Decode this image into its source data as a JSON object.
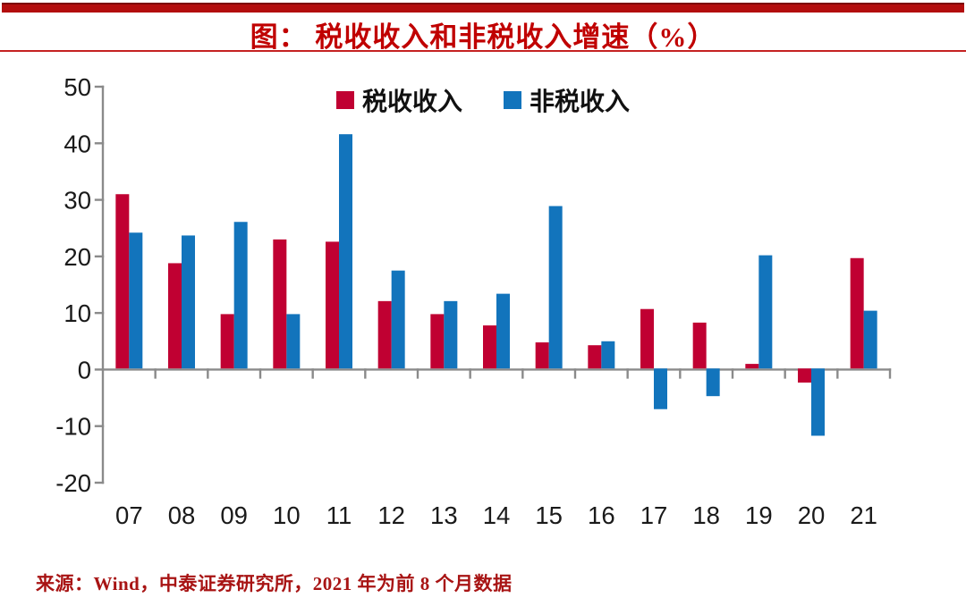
{
  "title": "图：  税收收入和非税收入增速（%）",
  "source_note": "来源：Wind，中泰证券研究所，2021 年为前 8 个月数据",
  "legend": {
    "items": [
      {
        "label": "税收收入",
        "color": "#c00032"
      },
      {
        "label": "非税收入",
        "color": "#1274bc"
      }
    ]
  },
  "colors": {
    "accent_red": "#c00000",
    "bar_red": "#c00032",
    "bar_blue": "#1274bc",
    "axis_gray": "#8a8a8a",
    "label_black": "#1a1a1a"
  },
  "chart_data": {
    "type": "bar",
    "title": "税收收入和非税收入增速（%）",
    "categories": [
      "07",
      "08",
      "09",
      "10",
      "11",
      "12",
      "13",
      "14",
      "15",
      "16",
      "17",
      "18",
      "19",
      "20",
      "21"
    ],
    "series": [
      {
        "name": "税收收入",
        "color": "#c00032",
        "values": [
          31.0,
          18.8,
          9.8,
          23.0,
          22.6,
          12.1,
          9.8,
          7.8,
          4.8,
          4.3,
          10.7,
          8.3,
          1.0,
          -2.3,
          19.7
        ]
      },
      {
        "name": "非税收入",
        "color": "#1274bc",
        "values": [
          24.2,
          23.7,
          26.1,
          9.8,
          41.6,
          17.5,
          12.1,
          13.4,
          28.9,
          5.0,
          -7.0,
          -4.7,
          20.2,
          -11.7,
          10.4
        ]
      }
    ],
    "ylim": [
      -20,
      50
    ],
    "yticks": [
      50,
      40,
      30,
      20,
      10,
      0,
      -10,
      -20
    ],
    "ytick_interval": 10,
    "xlabel": "",
    "ylabel": "",
    "grid": false,
    "legend_position": "top-center"
  }
}
